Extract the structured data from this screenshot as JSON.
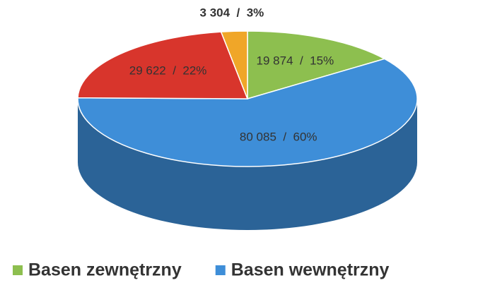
{
  "chart_data": {
    "type": "pie",
    "categories": [
      "Basen zewnętrzny",
      "Basen wewnętrzny",
      null,
      null
    ],
    "values": [
      19874,
      80085,
      29622,
      3304
    ],
    "value_labels": [
      "19 874  /  15%",
      "80 085  /  60%",
      "29 622  /  22%",
      "3 304  /  3%"
    ],
    "colors": [
      "#8dbf4f",
      "#3e8ed8",
      "#d8352c",
      "#f0a628"
    ],
    "start_angle": 0,
    "direction": "clockwise",
    "view": "3d",
    "legend": "bottom"
  }
}
